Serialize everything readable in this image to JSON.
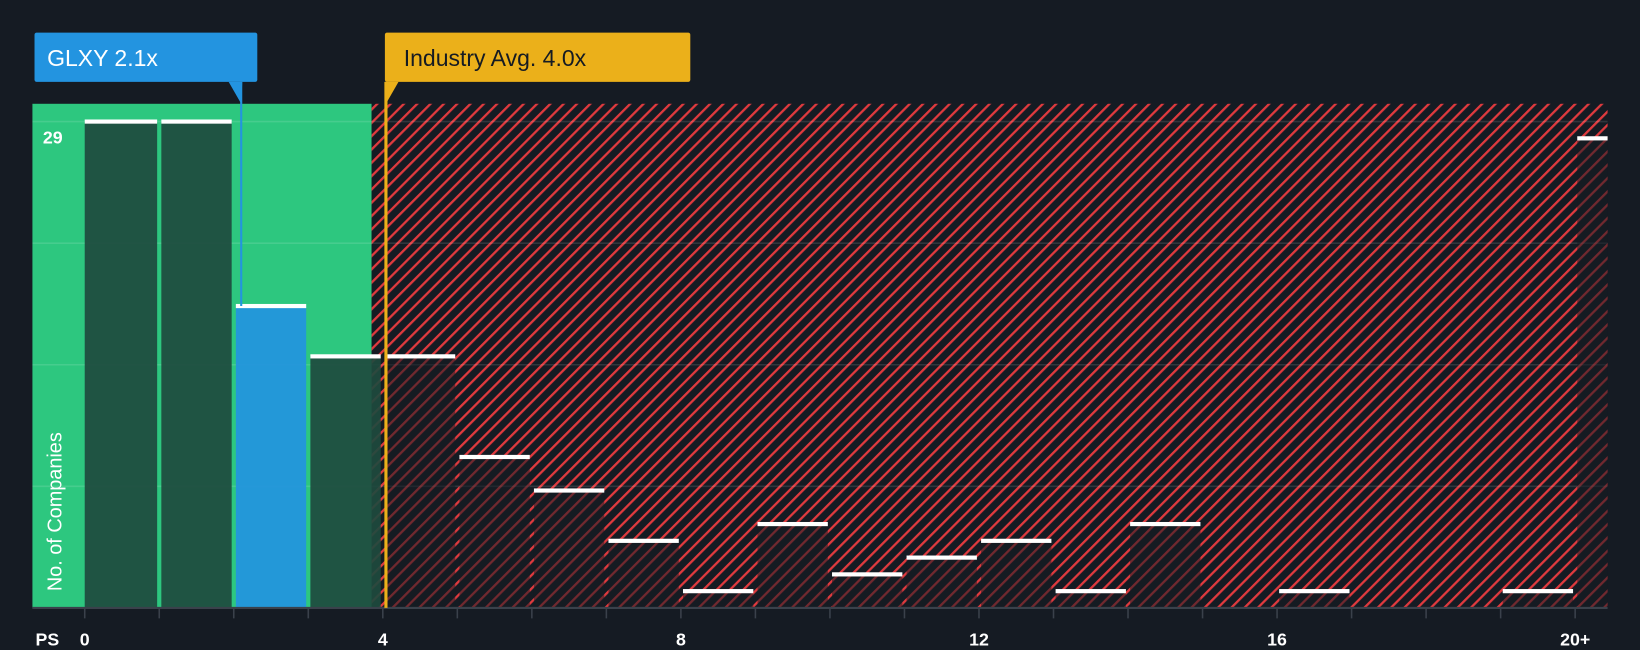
{
  "chart_data": {
    "type": "bar",
    "xlabel": "PS",
    "ylabel": "No. of Companies",
    "x_tick_labels": [
      "0",
      "4",
      "8",
      "12",
      "16",
      "20+"
    ],
    "y_tick_labels": [
      "29"
    ],
    "ylim": [
      0,
      29
    ],
    "grid": true,
    "bins": [
      {
        "from": 0,
        "to": 1,
        "value": 29
      },
      {
        "from": 1,
        "to": 2,
        "value": 29
      },
      {
        "from": 2,
        "to": 3,
        "value": 18,
        "highlight": true
      },
      {
        "from": 3,
        "to": 4,
        "value": 15
      },
      {
        "from": 4,
        "to": 5,
        "value": 15
      },
      {
        "from": 5,
        "to": 6,
        "value": 9
      },
      {
        "from": 6,
        "to": 7,
        "value": 7
      },
      {
        "from": 7,
        "to": 8,
        "value": 4
      },
      {
        "from": 8,
        "to": 9,
        "value": 1
      },
      {
        "from": 9,
        "to": 10,
        "value": 5
      },
      {
        "from": 10,
        "to": 11,
        "value": 2
      },
      {
        "from": 11,
        "to": 12,
        "value": 3
      },
      {
        "from": 12,
        "to": 13,
        "value": 4
      },
      {
        "from": 13,
        "to": 14,
        "value": 1
      },
      {
        "from": 14,
        "to": 15,
        "value": 5
      },
      {
        "from": 15,
        "to": 16,
        "value": 0
      },
      {
        "from": 16,
        "to": 17,
        "value": 1
      },
      {
        "from": 17,
        "to": 18,
        "value": 0
      },
      {
        "from": 18,
        "to": 19,
        "value": 0
      },
      {
        "from": 19,
        "to": 20,
        "value": 1
      },
      {
        "from": 20,
        "to": 20.5,
        "value": 28
      }
    ],
    "company": {
      "label": "GLXY 2.1x",
      "value": 2.1
    },
    "industry": {
      "label": "Industry Avg. 4.0x",
      "value": 4.0
    },
    "fair_zone_upper": 3.85
  },
  "colors": {
    "background": "#151b23",
    "fair_zone": "#2dc77f",
    "company": "#2394e0",
    "industry": "#ebb01a",
    "hatch": "#e03a3e",
    "bar_dark": "#1e4a3e",
    "bar_cap": "#ffffff"
  }
}
